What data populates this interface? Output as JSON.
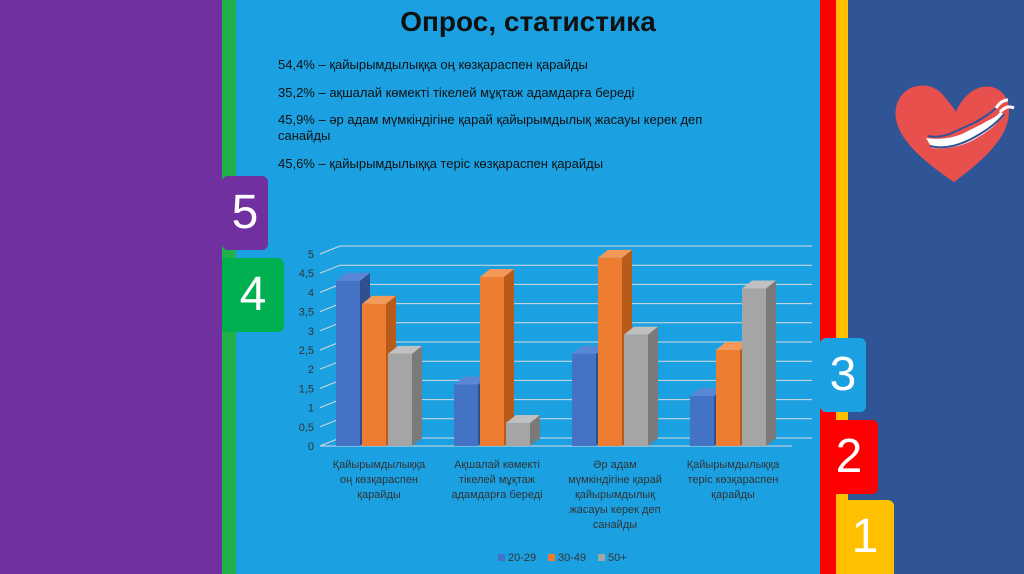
{
  "slide": {
    "title": "Опрос, статистика",
    "stats": [
      "54,4% – қайырымдылыққа оң көзқараспен қарайды",
      "35,2% – ақшалай көмекті тікелей мұқтаж адамдарға береді",
      "45,9% – әр адам мүмкіндігіне қарай қайырымдылық жасауы керек деп санайды",
      "45,6% – қайырымдылыққа теріс көзқараспен қарайды"
    ],
    "tabs": [
      "5",
      "4",
      "3",
      "2",
      "1"
    ]
  },
  "colors": {
    "purple": "#7030a0",
    "green": "#00b050",
    "blue_bg": "#1ba1e2",
    "red": "#ff0000",
    "yellow": "#ffc000",
    "navy": "#2f5597",
    "series_20_29": "#4472c4",
    "series_30_49": "#ed7d31",
    "series_50_plus": "#a5a5a5"
  },
  "icons": [
    "heart-hands-icon"
  ],
  "chart_data": {
    "type": "bar",
    "categories": [
      [
        "Қайырымдылыққа",
        "оң көзқараспен",
        "қарайды"
      ],
      [
        "Ақшалай көмекті",
        "тікелей мұқтаж",
        "адамдарға береді"
      ],
      [
        "Әр адам",
        "мүмкіндігіне қарай",
        "қайырымдылық",
        "жасауы керек деп",
        "санайды"
      ],
      [
        "Қайырымдылыққа",
        "теріс көзқараспен",
        "қарайды"
      ]
    ],
    "series": [
      {
        "name": "20-29",
        "values": [
          4.3,
          1.6,
          2.4,
          1.3
        ]
      },
      {
        "name": "30-49",
        "values": [
          3.7,
          4.4,
          4.9,
          2.5
        ]
      },
      {
        "name": "50+",
        "values": [
          2.4,
          0.6,
          2.9,
          4.1
        ]
      }
    ],
    "yticks": [
      "0",
      "0,5",
      "1",
      "1,5",
      "2",
      "2,5",
      "3",
      "3,5",
      "4",
      "4,5",
      "5"
    ],
    "ylim": [
      0,
      5
    ],
    "grid": true,
    "legend": "bottom"
  }
}
